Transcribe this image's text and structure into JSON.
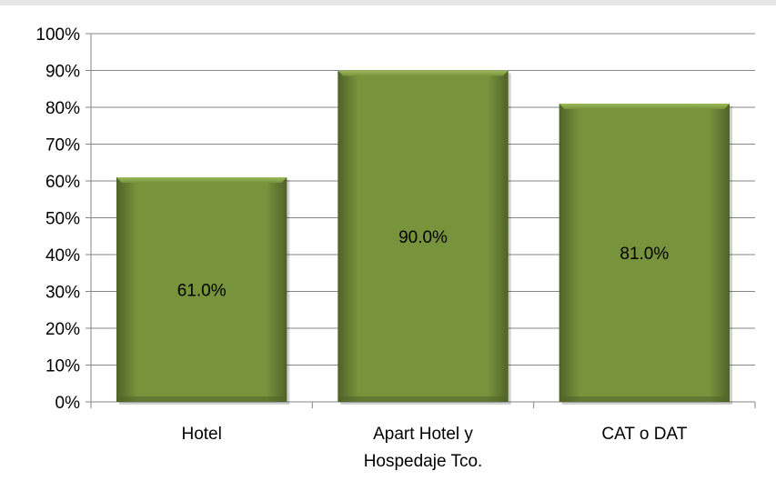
{
  "chart_data": {
    "type": "bar",
    "categories": [
      [
        "Hotel"
      ],
      [
        "Apart Hotel y",
        "Hospedaje Tco."
      ],
      [
        "CAT o DAT"
      ]
    ],
    "values": [
      61.0,
      90.0,
      81.0
    ],
    "data_labels": [
      "61.0%",
      "90.0%",
      "81.0%"
    ],
    "y_ticks": [
      "0%",
      "10%",
      "20%",
      "30%",
      "40%",
      "50%",
      "60%",
      "70%",
      "80%",
      "90%",
      "100%"
    ],
    "ylim": [
      0,
      100
    ],
    "grid": true,
    "legend": "none",
    "bar_color": "#77933c",
    "bar_highlight": "#9bbb59",
    "bar_shadow": "#4f6228",
    "title": "",
    "xlabel": "",
    "ylabel": ""
  }
}
